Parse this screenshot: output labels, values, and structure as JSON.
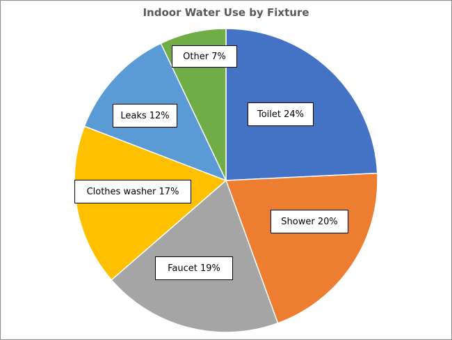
{
  "chart_data": {
    "type": "pie",
    "title": "Indoor Water Use by Fixture",
    "start_angle": "top",
    "direction": "clockwise",
    "slices": [
      {
        "label": "Toilet",
        "value": 24,
        "text": "Toilet 24%",
        "color": "#4472C4"
      },
      {
        "label": "Shower",
        "value": 20,
        "text": "Shower 20%",
        "color": "#ED7D31"
      },
      {
        "label": "Faucet",
        "value": 19,
        "text": "Faucet 19%",
        "color": "#A5A5A5"
      },
      {
        "label": "Clothes washer",
        "value": 17,
        "text": "Clothes washer 17%",
        "color": "#FFC000"
      },
      {
        "label": "Leaks",
        "value": 12,
        "text": "Leaks 12%",
        "color": "#5B9BD5"
      },
      {
        "label": "Other",
        "value": 7,
        "text": "Other 7%",
        "color": "#70AD47"
      }
    ],
    "legend": "none"
  }
}
